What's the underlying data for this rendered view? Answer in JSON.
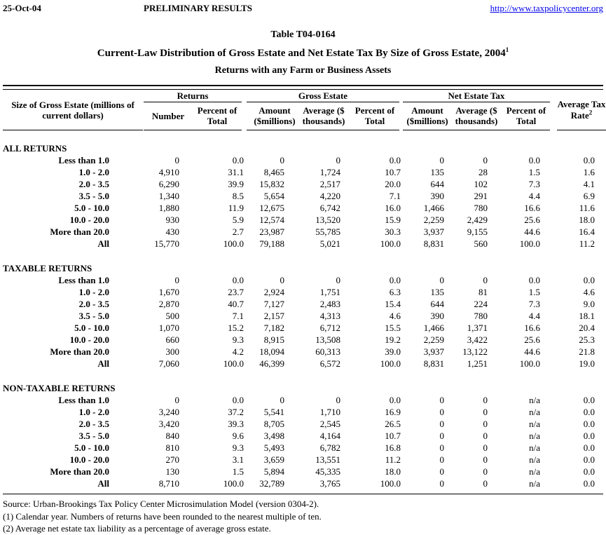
{
  "header": {
    "date": "25-Oct-04",
    "status": "PRELIMINARY RESULTS",
    "url": "http://www.taxpolicycenter.org"
  },
  "titles": {
    "table_number": "Table T04-0164",
    "main": "Current-Law Distribution of Gross Estate and Net Estate Tax By Size of Gross Estate, 2004",
    "main_footnote_ref": "1",
    "subtitle": "Returns with any Farm or Business Assets"
  },
  "table": {
    "row_label_header": "Size of Gross Estate (millions of current dollars)",
    "groups": {
      "returns": "Returns",
      "gross_estate": "Gross Estate",
      "net_estate_tax": "Net Estate Tax"
    },
    "columns": {
      "number": "Number",
      "returns_percent_of_total": "Percent of Total",
      "gross_amount": "Amount ($millions)",
      "gross_average": "Average ($ thousands)",
      "gross_percent_of_total": "Percent of Total",
      "net_amount": "Amount ($millions)",
      "net_average": "Average ($ thousands)",
      "net_percent_of_total": "Percent of Total",
      "avg_tax_rate": "Average Tax Rate",
      "avg_tax_rate_footnote_ref": "2"
    },
    "sections": [
      {
        "name": "ALL RETURNS",
        "rows": [
          {
            "label": "Less than 1.0",
            "values": [
              "0",
              "0.0",
              "0",
              "0",
              "0.0",
              "0",
              "0",
              "0.0",
              "0.0"
            ]
          },
          {
            "label": "1.0 - 2.0",
            "values": [
              "4,910",
              "31.1",
              "8,465",
              "1,724",
              "10.7",
              "135",
              "28",
              "1.5",
              "1.6"
            ]
          },
          {
            "label": "2.0 - 3.5",
            "values": [
              "6,290",
              "39.9",
              "15,832",
              "2,517",
              "20.0",
              "644",
              "102",
              "7.3",
              "4.1"
            ]
          },
          {
            "label": "3.5 - 5.0",
            "values": [
              "1,340",
              "8.5",
              "5,654",
              "4,220",
              "7.1",
              "390",
              "291",
              "4.4",
              "6.9"
            ]
          },
          {
            "label": "5.0 - 10.0",
            "values": [
              "1,880",
              "11.9",
              "12,675",
              "6,742",
              "16.0",
              "1,466",
              "780",
              "16.6",
              "11.6"
            ]
          },
          {
            "label": "10.0 - 20.0",
            "values": [
              "930",
              "5.9",
              "12,574",
              "13,520",
              "15.9",
              "2,259",
              "2,429",
              "25.6",
              "18.0"
            ]
          },
          {
            "label": "More than 20.0",
            "values": [
              "430",
              "2.7",
              "23,987",
              "55,785",
              "30.3",
              "3,937",
              "9,155",
              "44.6",
              "16.4"
            ]
          },
          {
            "label": "All",
            "values": [
              "15,770",
              "100.0",
              "79,188",
              "5,021",
              "100.0",
              "8,831",
              "560",
              "100.0",
              "11.2"
            ]
          }
        ]
      },
      {
        "name": "TAXABLE RETURNS",
        "rows": [
          {
            "label": "Less than 1.0",
            "values": [
              "0",
              "0.0",
              "0",
              "0",
              "0.0",
              "0",
              "0",
              "0.0",
              "0.0"
            ]
          },
          {
            "label": "1.0 - 2.0",
            "values": [
              "1,670",
              "23.7",
              "2,924",
              "1,751",
              "6.3",
              "135",
              "81",
              "1.5",
              "4.6"
            ]
          },
          {
            "label": "2.0 - 3.5",
            "values": [
              "2,870",
              "40.7",
              "7,127",
              "2,483",
              "15.4",
              "644",
              "224",
              "7.3",
              "9.0"
            ]
          },
          {
            "label": "3.5 - 5.0",
            "values": [
              "500",
              "7.1",
              "2,157",
              "4,313",
              "4.6",
              "390",
              "780",
              "4.4",
              "18.1"
            ]
          },
          {
            "label": "5.0 - 10.0",
            "values": [
              "1,070",
              "15.2",
              "7,182",
              "6,712",
              "15.5",
              "1,466",
              "1,371",
              "16.6",
              "20.4"
            ]
          },
          {
            "label": "10.0 - 20.0",
            "values": [
              "660",
              "9.3",
              "8,915",
              "13,508",
              "19.2",
              "2,259",
              "3,422",
              "25.6",
              "25.3"
            ]
          },
          {
            "label": "More than 20.0",
            "values": [
              "300",
              "4.2",
              "18,094",
              "60,313",
              "39.0",
              "3,937",
              "13,122",
              "44.6",
              "21.8"
            ]
          },
          {
            "label": "All",
            "values": [
              "7,060",
              "100.0",
              "46,399",
              "6,572",
              "100.0",
              "8,831",
              "1,251",
              "100.0",
              "19.0"
            ]
          }
        ]
      },
      {
        "name": "NON-TAXABLE RETURNS",
        "rows": [
          {
            "label": "Less than 1.0",
            "values": [
              "0",
              "0.0",
              "0",
              "0",
              "0.0",
              "0",
              "0",
              "n/a",
              "0.0"
            ]
          },
          {
            "label": "1.0 - 2.0",
            "values": [
              "3,240",
              "37.2",
              "5,541",
              "1,710",
              "16.9",
              "0",
              "0",
              "n/a",
              "0.0"
            ]
          },
          {
            "label": "2.0 - 3.5",
            "values": [
              "3,420",
              "39.3",
              "8,705",
              "2,545",
              "26.5",
              "0",
              "0",
              "n/a",
              "0.0"
            ]
          },
          {
            "label": "3.5 - 5.0",
            "values": [
              "840",
              "9.6",
              "3,498",
              "4,164",
              "10.7",
              "0",
              "0",
              "n/a",
              "0.0"
            ]
          },
          {
            "label": "5.0 - 10.0",
            "values": [
              "810",
              "9.3",
              "5,493",
              "6,782",
              "16.8",
              "0",
              "0",
              "n/a",
              "0.0"
            ]
          },
          {
            "label": "10.0 - 20.0",
            "values": [
              "270",
              "3.1",
              "3,659",
              "13,551",
              "11.2",
              "0",
              "0",
              "n/a",
              "0.0"
            ]
          },
          {
            "label": "More than 20.0",
            "values": [
              "130",
              "1.5",
              "5,894",
              "45,335",
              "18.0",
              "0",
              "0",
              "n/a",
              "0.0"
            ]
          },
          {
            "label": "All",
            "values": [
              "8,710",
              "100.0",
              "32,789",
              "3,765",
              "100.0",
              "0",
              "0",
              "n/a",
              "0.0"
            ]
          }
        ]
      }
    ]
  },
  "footnotes": {
    "source": "Source: Urban-Brookings Tax Policy Center Microsimulation Model (version 0304-2).",
    "note1": "(1) Calendar year. Numbers of returns have been rounded to the nearest multiple of ten.",
    "note2": "(2) Average net estate tax liability as a percentage of average gross estate."
  }
}
